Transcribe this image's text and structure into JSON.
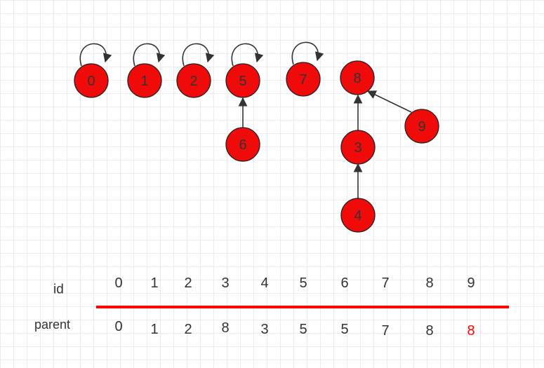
{
  "nodes": [
    {
      "label": "0"
    },
    {
      "label": "1"
    },
    {
      "label": "2"
    },
    {
      "label": "5"
    },
    {
      "label": "7"
    },
    {
      "label": "8"
    },
    {
      "label": "6"
    },
    {
      "label": "9"
    },
    {
      "label": "3"
    },
    {
      "label": "4"
    }
  ],
  "table": {
    "id_label": "id",
    "parent_label": "parent",
    "ids": [
      "0",
      "1",
      "2",
      "3",
      "4",
      "5",
      "6",
      "7",
      "8",
      "9"
    ],
    "parents": [
      "0",
      "1",
      "2",
      "8",
      "3",
      "5",
      "5",
      "7",
      "8",
      "8"
    ]
  }
}
